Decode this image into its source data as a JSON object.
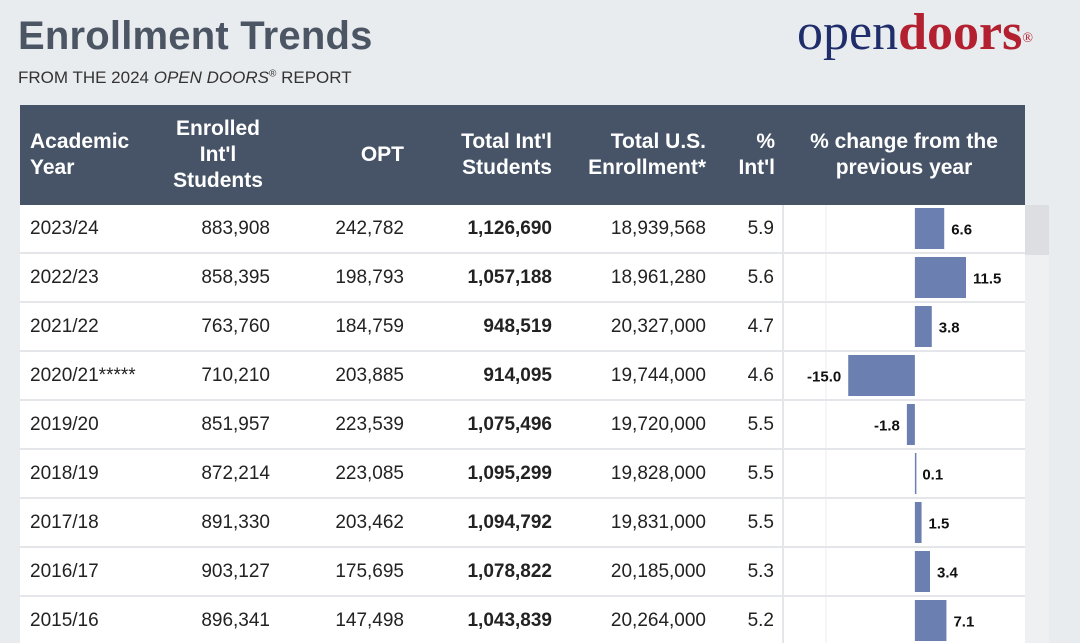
{
  "header": {
    "title": "Enrollment Trends",
    "subtitle_prefix": "FROM THE 2024 ",
    "subtitle_italic": "OPEN DOORS",
    "subtitle_reg": "®",
    "subtitle_suffix": " REPORT"
  },
  "logo": {
    "part1": "open",
    "part2": "doors",
    "reg": "®"
  },
  "colors": {
    "header_bg": "#475467",
    "bar": "#6b7fb0",
    "page_bg": "#e9ecef",
    "logo_blue": "#1f2d6b",
    "logo_red": "#b32131"
  },
  "table": {
    "columns": [
      "Academic Year",
      "Enrolled Int'l Students",
      "OPT",
      "Total Int'l Students",
      "Total U.S. Enrollment*",
      "% Int'l",
      "% change from the previous year"
    ],
    "rows": [
      {
        "year": "2023/24",
        "enrolled": "883,908",
        "opt": "242,782",
        "total_intl": "1,126,690",
        "total_us": "18,939,568",
        "pct_intl": "5.9",
        "change": "6.6"
      },
      {
        "year": "2022/23",
        "enrolled": "858,395",
        "opt": "198,793",
        "total_intl": "1,057,188",
        "total_us": "18,961,280",
        "pct_intl": "5.6",
        "change": "11.5"
      },
      {
        "year": "2021/22",
        "enrolled": "763,760",
        "opt": "184,759",
        "total_intl": "948,519",
        "total_us": "20,327,000",
        "pct_intl": "4.7",
        "change": "3.8"
      },
      {
        "year": "2020/21*****",
        "enrolled": "710,210",
        "opt": "203,885",
        "total_intl": "914,095",
        "total_us": "19,744,000",
        "pct_intl": "4.6",
        "change": "-15.0"
      },
      {
        "year": "2019/20",
        "enrolled": "851,957",
        "opt": "223,539",
        "total_intl": "1,075,496",
        "total_us": "19,720,000",
        "pct_intl": "5.5",
        "change": "-1.8"
      },
      {
        "year": "2018/19",
        "enrolled": "872,214",
        "opt": "223,085",
        "total_intl": "1,095,299",
        "total_us": "19,828,000",
        "pct_intl": "5.5",
        "change": "0.1"
      },
      {
        "year": "2017/18",
        "enrolled": "891,330",
        "opt": "203,462",
        "total_intl": "1,094,792",
        "total_us": "19,831,000",
        "pct_intl": "5.5",
        "change": "1.5"
      },
      {
        "year": "2016/17",
        "enrolled": "903,127",
        "opt": "175,695",
        "total_intl": "1,078,822",
        "total_us": "20,185,000",
        "pct_intl": "5.3",
        "change": "3.4"
      },
      {
        "year": "2015/16",
        "enrolled": "896,341",
        "opt": "147,498",
        "total_intl": "1,043,839",
        "total_us": "20,264,000",
        "pct_intl": "5.2",
        "change": "7.1"
      }
    ]
  },
  "chart_data": {
    "type": "bar",
    "orientation": "horizontal",
    "categories": [
      "2023/24",
      "2022/23",
      "2021/22",
      "2020/21*****",
      "2019/20",
      "2018/19",
      "2017/18",
      "2016/17",
      "2015/16"
    ],
    "values": [
      6.6,
      11.5,
      3.8,
      -15.0,
      -1.8,
      0.1,
      1.5,
      3.4,
      7.1
    ],
    "title": "% change from the previous year",
    "xlim": [
      -20,
      25
    ]
  }
}
